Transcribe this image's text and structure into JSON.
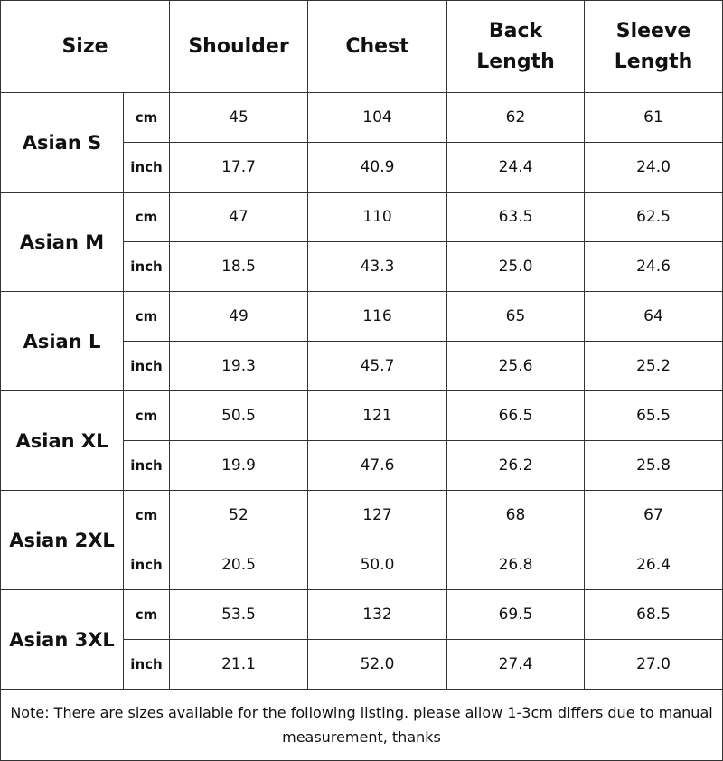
{
  "headers": {
    "size": "Size",
    "shoulder": "Shoulder",
    "chest": "Chest",
    "back_length": "Back Length",
    "sleeve_length": "Sleeve Length"
  },
  "units": {
    "cm": "cm",
    "inch": "inch"
  },
  "rows": [
    {
      "size": "Asian S",
      "cm": [
        "45",
        "104",
        "62",
        "61"
      ],
      "inch": [
        "17.7",
        "40.9",
        "24.4",
        "24.0"
      ]
    },
    {
      "size": "Asian M",
      "cm": [
        "47",
        "110",
        "63.5",
        "62.5"
      ],
      "inch": [
        "18.5",
        "43.3",
        "25.0",
        "24.6"
      ]
    },
    {
      "size": "Asian L",
      "cm": [
        "49",
        "116",
        "65",
        "64"
      ],
      "inch": [
        "19.3",
        "45.7",
        "25.6",
        "25.2"
      ]
    },
    {
      "size": "Asian XL",
      "cm": [
        "50.5",
        "121",
        "66.5",
        "65.5"
      ],
      "inch": [
        "19.9",
        "47.6",
        "26.2",
        "25.8"
      ]
    },
    {
      "size": "Asian 2XL",
      "cm": [
        "52",
        "127",
        "68",
        "67"
      ],
      "inch": [
        "20.5",
        "50.0",
        "26.8",
        "26.4"
      ]
    },
    {
      "size": "Asian 3XL",
      "cm": [
        "53.5",
        "132",
        "69.5",
        "68.5"
      ],
      "inch": [
        "21.1",
        "52.0",
        "27.4",
        "27.0"
      ]
    }
  ],
  "note": "Note: There are sizes available for the following listing. please allow 1-3cm differs due to manual measurement, thanks"
}
